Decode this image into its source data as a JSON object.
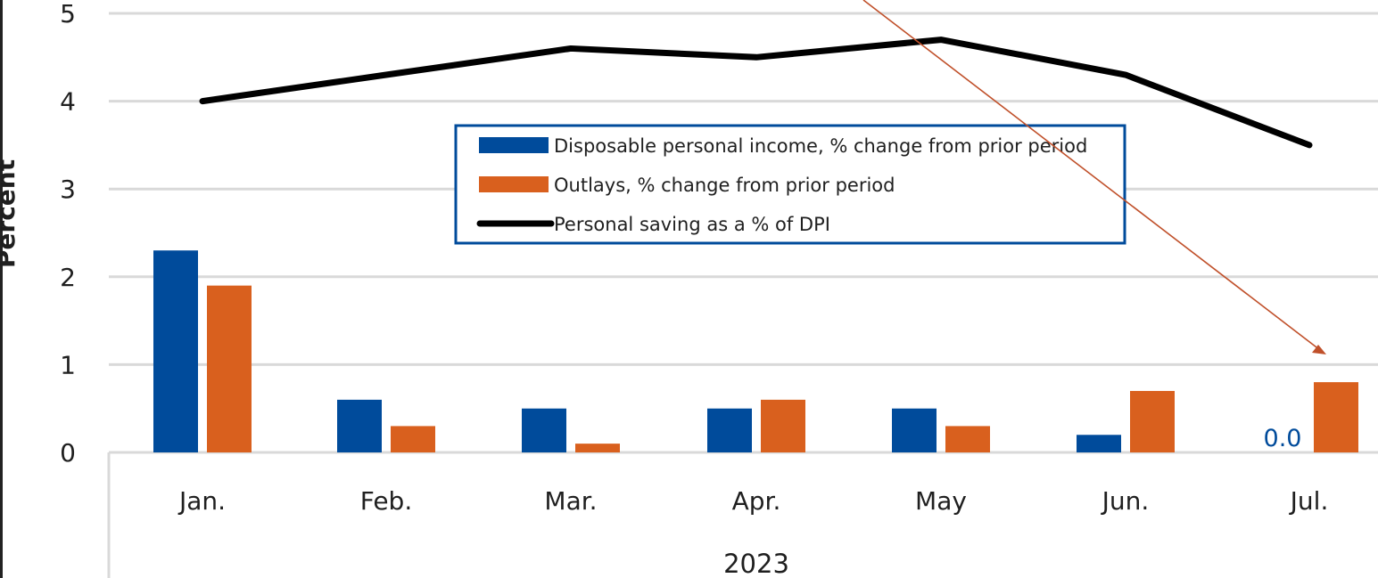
{
  "chart_data": {
    "type": "bar",
    "year": "2023",
    "ylabel": "Percent",
    "ylim": [
      0,
      5
    ],
    "yticks": [
      "0",
      "1",
      "2",
      "3",
      "4",
      "5"
    ],
    "categories": [
      "Jan.",
      "Feb.",
      "Mar.",
      "Apr.",
      "May",
      "Jun.",
      "Jul."
    ],
    "series": [
      {
        "name": "Disposable personal income, % change from prior period",
        "kind": "bar",
        "color": "#004b9b",
        "values": [
          2.3,
          0.6,
          0.5,
          0.5,
          0.5,
          0.2,
          0.0
        ]
      },
      {
        "name": "Outlays, % change from prior period",
        "kind": "bar",
        "color": "#d9601e",
        "values": [
          1.9,
          0.3,
          0.1,
          0.6,
          0.3,
          0.7,
          0.8
        ]
      },
      {
        "name": "Personal saving as a % of DPI",
        "kind": "line",
        "color": "#000000",
        "values": [
          4.0,
          4.3,
          4.6,
          4.5,
          4.7,
          4.3,
          3.5
        ]
      }
    ],
    "data_labels": [
      {
        "series": 0,
        "index": 6,
        "text": "0.0"
      }
    ],
    "grid": true,
    "legend": "center",
    "annotation": {
      "type": "arrow",
      "color": "#c0502a",
      "points_to": "Jul."
    }
  }
}
